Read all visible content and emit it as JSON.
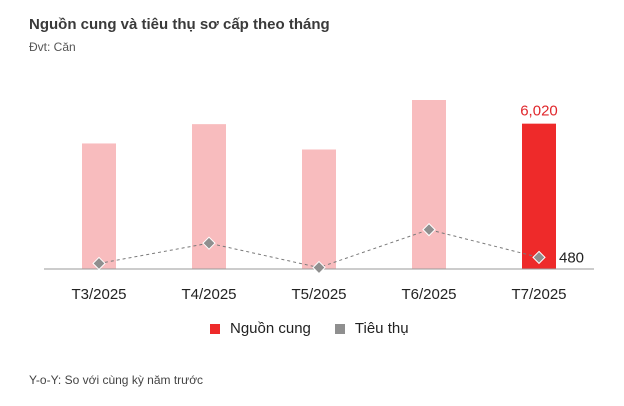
{
  "header": {
    "title": "Nguồn cung và tiêu thụ sơ cấp theo tháng",
    "unit": "Đvt: Căn"
  },
  "footnote": "Y-o-Y: So với cùng kỳ năm trước",
  "colors": {
    "bar_past": "#f8bcbe",
    "bar_current": "#ee2a2a",
    "line_marker": "#8f8f8f",
    "line_dash": "#7a7a7a",
    "axis": "#9a9a9a",
    "value_label_supply": "#e0262b",
    "value_label_consumption": "#222222"
  },
  "chart_data": {
    "type": "bar",
    "title": "Nguồn cung và tiêu thụ sơ cấp theo tháng",
    "ylabel": "Đvt: Căn",
    "categories": [
      "T3/2025",
      "T4/2025",
      "T5/2025",
      "T6/2025",
      "T7/2025"
    ],
    "ylim": [
      0,
      7000
    ],
    "grid": false,
    "legend_position": "bottom",
    "series": [
      {
        "name": "Nguồn cung",
        "type": "bar",
        "values": [
          5200,
          6000,
          4950,
          7000,
          6020
        ],
        "labels": [
          "",
          "",
          "",
          "",
          "6,020"
        ]
      },
      {
        "name": "Tiêu thụ",
        "type": "line",
        "line_style": "dashed",
        "marker": "diamond",
        "values": [
          230,
          1070,
          60,
          1630,
          480
        ],
        "labels": [
          "",
          "",
          "",
          "",
          "480"
        ]
      }
    ]
  }
}
